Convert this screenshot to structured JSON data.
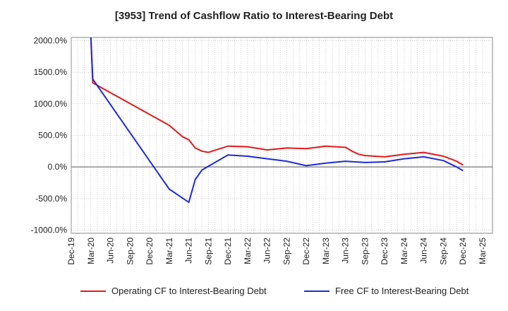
{
  "title": "[3953]  Trend of Cashflow Ratio to Interest-Bearing Debt",
  "chart_data": {
    "type": "line",
    "title": "[3953]  Trend of Cashflow Ratio to Interest-Bearing Debt",
    "xlabel": "",
    "ylabel": "",
    "x_tick_labels": [
      "Dec-19",
      "Mar-20",
      "Jun-20",
      "Sep-20",
      "Dec-20",
      "Mar-21",
      "Jun-21",
      "Sep-21",
      "Dec-21",
      "Mar-22",
      "Jun-22",
      "Sep-22",
      "Dec-22",
      "Mar-23",
      "Jun-23",
      "Sep-23",
      "Dec-23",
      "Mar-24",
      "Jun-24",
      "Sep-24",
      "Dec-24",
      "Mar-25"
    ],
    "y_tick_labels": [
      "2000.0%",
      "1500.0%",
      "1000.0%",
      "500.0%",
      "0.0%",
      "-500.0%",
      "-1000.0%"
    ],
    "ylim": [
      -1000,
      2000
    ],
    "grid": true,
    "legend_position": "bottom",
    "series": [
      {
        "name": "Operating CF to Interest-Bearing Debt",
        "color": "#e41a1c",
        "x": [
          "Mar-20",
          "Mar-20",
          "Dec-20",
          "Feb-21",
          "Mar-21",
          "Apr-21",
          "May-21",
          "Jun-21",
          "Sep-21",
          "Dec-21",
          "Mar-22",
          "Jun-22",
          "Sep-22",
          "Dec-22",
          "Mar-23",
          "Apr-23",
          "May-23",
          "Jun-23",
          "Sep-23",
          "Dec-23",
          "Mar-24",
          "Jun-24",
          "Aug-24",
          "Sep-24"
        ],
        "x_idx": [
          0.0,
          0.1,
          4.0,
          4.67,
          5.0,
          5.33,
          5.67,
          6.0,
          7.0,
          8.0,
          9.0,
          10.0,
          11.0,
          12.0,
          13.0,
          13.33,
          13.67,
          14.0,
          15.0,
          16.0,
          17.0,
          18.0,
          18.67,
          19.0
        ],
        "y": [
          2050,
          1330,
          660,
          480,
          430,
          300,
          250,
          230,
          330,
          320,
          270,
          300,
          290,
          330,
          310,
          250,
          200,
          180,
          160,
          200,
          230,
          170,
          90,
          30
        ]
      },
      {
        "name": "Free CF to Interest-Bearing Debt",
        "color": "#1f2bd6",
        "x": [
          "Mar-20",
          "Mar-20",
          "Dec-20",
          "Mar-21",
          "Apr-21",
          "May-21",
          "Jun-21",
          "Sep-21",
          "Dec-21",
          "Mar-22",
          "Jun-22",
          "Sep-22",
          "Dec-22",
          "Mar-23",
          "Jun-23",
          "Sep-23",
          "Dec-23",
          "Mar-24",
          "Jun-24",
          "Aug-24",
          "Sep-24"
        ],
        "x_idx": [
          0.0,
          0.1,
          4.0,
          5.0,
          5.33,
          5.67,
          6.0,
          7.0,
          8.0,
          9.0,
          10.0,
          11.0,
          12.0,
          13.0,
          14.0,
          15.0,
          16.0,
          17.0,
          18.0,
          18.67,
          19.0
        ],
        "y": [
          2050,
          1390,
          -350,
          -560,
          -200,
          -50,
          10,
          190,
          170,
          130,
          90,
          20,
          60,
          90,
          70,
          80,
          130,
          160,
          100,
          0,
          -60
        ]
      }
    ]
  }
}
